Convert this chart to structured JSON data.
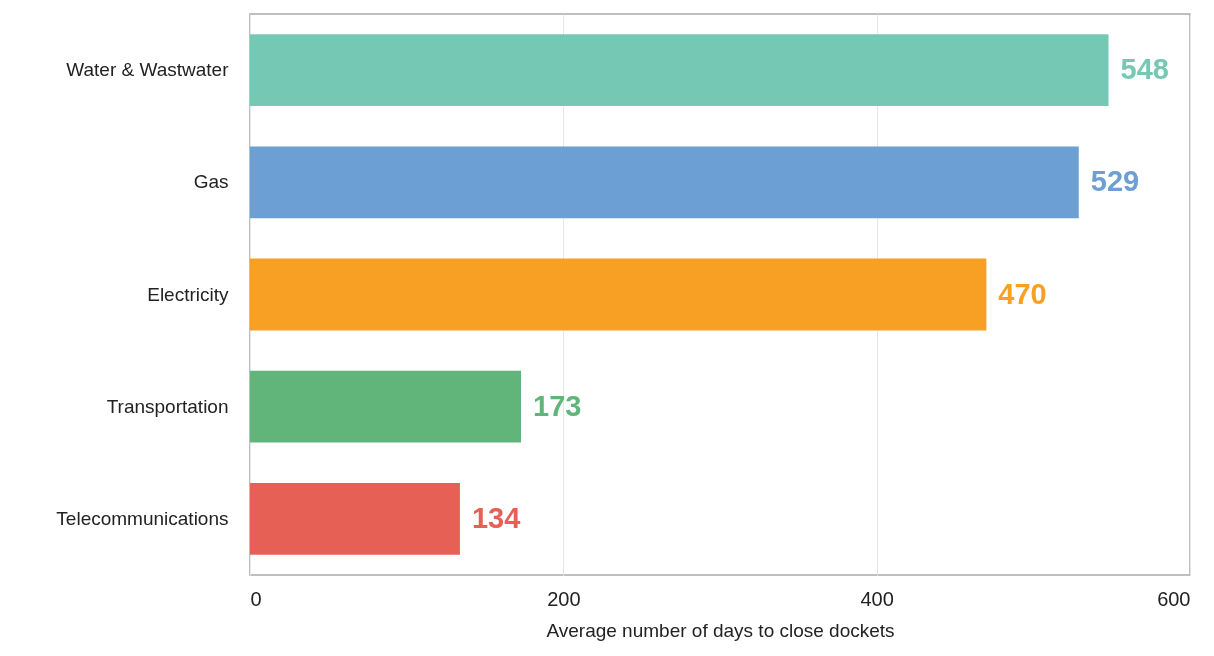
{
  "chart_data": {
    "type": "bar",
    "orientation": "horizontal",
    "xlabel": "Average number of days to close dockets",
    "categories": [
      "Water & Wastwater",
      "Gas",
      "Electricity",
      "Transportation",
      "Telecommunications"
    ],
    "values": [
      548,
      529,
      470,
      173,
      134
    ],
    "colors": [
      "#74c8b4",
      "#6c9fd4",
      "#f7a024",
      "#62b57a",
      "#e66055"
    ],
    "xlim": [
      0,
      600
    ],
    "xticks": [
      0,
      200,
      400,
      600
    ],
    "grid": "x",
    "data_labels": true,
    "legend": false
  }
}
